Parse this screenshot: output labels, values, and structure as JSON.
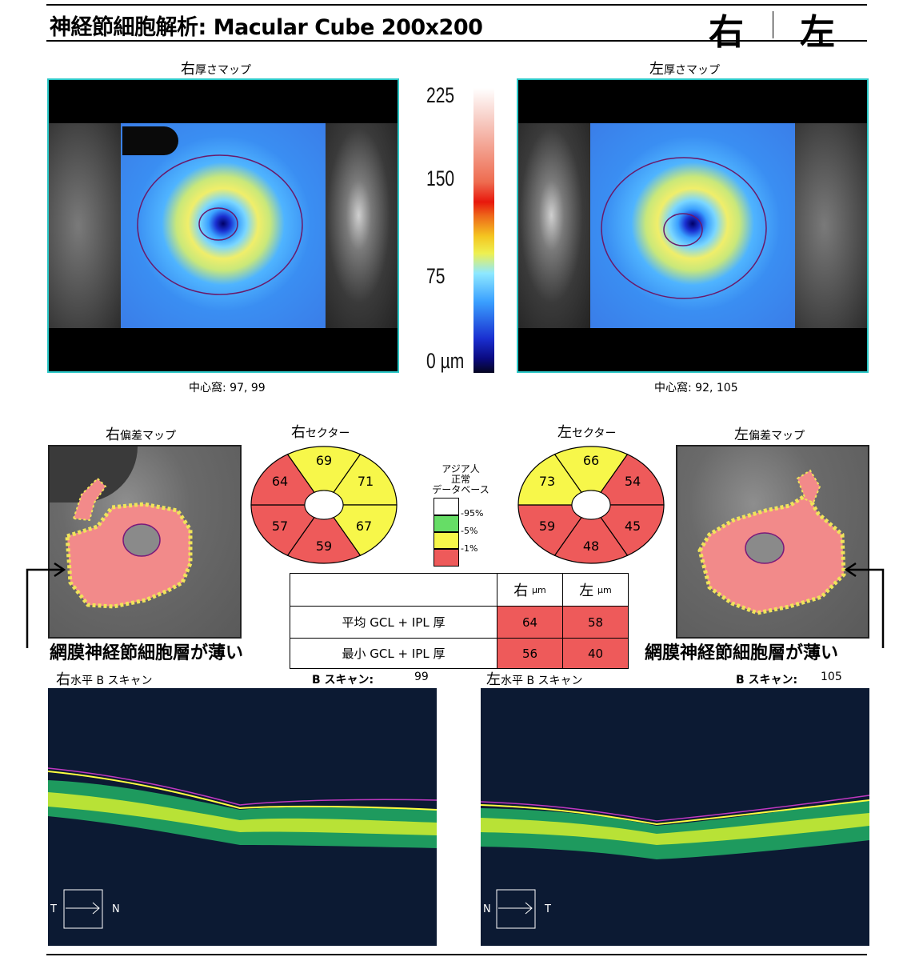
{
  "header": {
    "title": "神経節細胞解析: Macular Cube 200x200",
    "eye_right": "右",
    "eye_left": "左"
  },
  "thickness": {
    "right_label_eye": "右",
    "right_label": "厚さマップ",
    "left_label_eye": "左",
    "left_label": "厚さマップ",
    "right_fovea": "中心窩: 97, 99",
    "left_fovea": "中心窩: 92, 105",
    "scale_ticks": [
      "225",
      "150",
      "75",
      "0 µm"
    ]
  },
  "deviation": {
    "right_label_eye": "右",
    "right_label": "偏差マップ",
    "left_label_eye": "左",
    "left_label": "偏差マップ"
  },
  "sectors": {
    "right_title_eye": "右",
    "right_title": "セクター",
    "left_title_eye": "左",
    "left_title": "セクター",
    "right_values": {
      "top": "69",
      "top_right": "71",
      "bottom_right": "67",
      "bottom": "59",
      "bottom_left": "57",
      "top_left": "64"
    },
    "left_values": {
      "top": "66",
      "top_right": "54",
      "bottom_right": "45",
      "bottom": "48",
      "bottom_left": "59",
      "top_left": "73"
    },
    "right_colors": {
      "top": "#f7f74a",
      "top_right": "#f7f74a",
      "bottom_right": "#f7f74a",
      "bottom": "#ee5a5a",
      "bottom_left": "#ee5a5a",
      "top_left": "#ee5a5a"
    },
    "left_colors": {
      "top": "#f7f74a",
      "top_right": "#ee5a5a",
      "bottom_right": "#ee5a5a",
      "bottom": "#ee5a5a",
      "bottom_left": "#ee5a5a",
      "top_left": "#f7f74a"
    }
  },
  "normative_legend": {
    "title_1": "アジア人",
    "title_2": "正常",
    "title_3": "データベース",
    "levels": [
      "95%",
      "5%",
      "1%"
    ],
    "colors": {
      "white": "#ffffff",
      "green": "#66dd66",
      "yellow": "#f7f74a",
      "red": "#ee5a5a"
    }
  },
  "table": {
    "col_right_eye": "右",
    "col_right_unit": "µm",
    "col_left_eye": "左",
    "col_left_unit": "µm",
    "rows": [
      {
        "label": "平均 GCL + IPL 厚",
        "right": "64",
        "left": "58"
      },
      {
        "label": "最小 GCL + IPL 厚",
        "right": "56",
        "left": "40"
      }
    ]
  },
  "annotations": {
    "right_callout": "網膜神経節細胞層が薄い",
    "left_callout": "網膜神経節細胞層が薄い"
  },
  "bscan": {
    "right_label_eye": "右",
    "right_label": "水平 B スキャン",
    "left_label_eye": "左",
    "left_label": "水平 B スキャン",
    "scan_label": "B スキャン:",
    "right_scan_no": "99",
    "left_scan_no": "105",
    "right_orient_left": "T",
    "right_orient_right": "N",
    "left_orient_left": "N",
    "left_orient_right": "T"
  }
}
